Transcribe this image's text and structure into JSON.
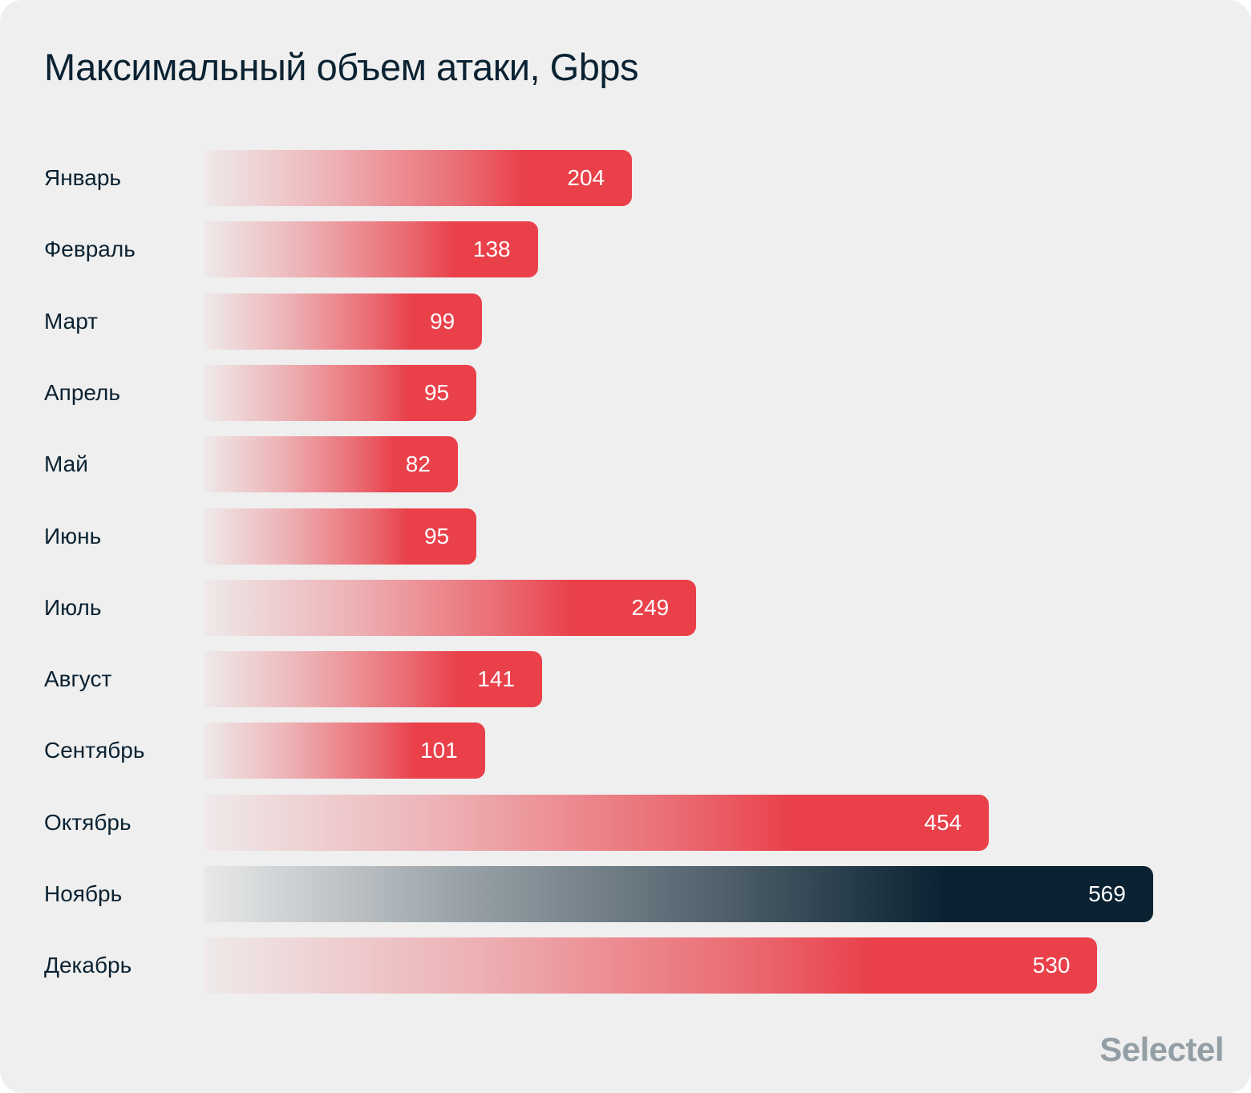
{
  "chart_data": {
    "type": "bar",
    "orientation": "horizontal",
    "title": "Максимальный объем атаки, Gbps",
    "categories": [
      "Январь",
      "Февраль",
      "Март",
      "Апрель",
      "Май",
      "Июнь",
      "Июль",
      "Август",
      "Сентябрь",
      "Октябрь",
      "Ноябрь",
      "Декабрь"
    ],
    "values": [
      204,
      138,
      99,
      95,
      82,
      95,
      249,
      141,
      101,
      454,
      569,
      530
    ],
    "highlight_index": 10,
    "colors": {
      "bar": "#e9404a",
      "highlight": "#0a2232",
      "background": "#efefef",
      "text": "#0a2232"
    },
    "grid": false,
    "data_labels": true
  },
  "logo": "Selectel"
}
